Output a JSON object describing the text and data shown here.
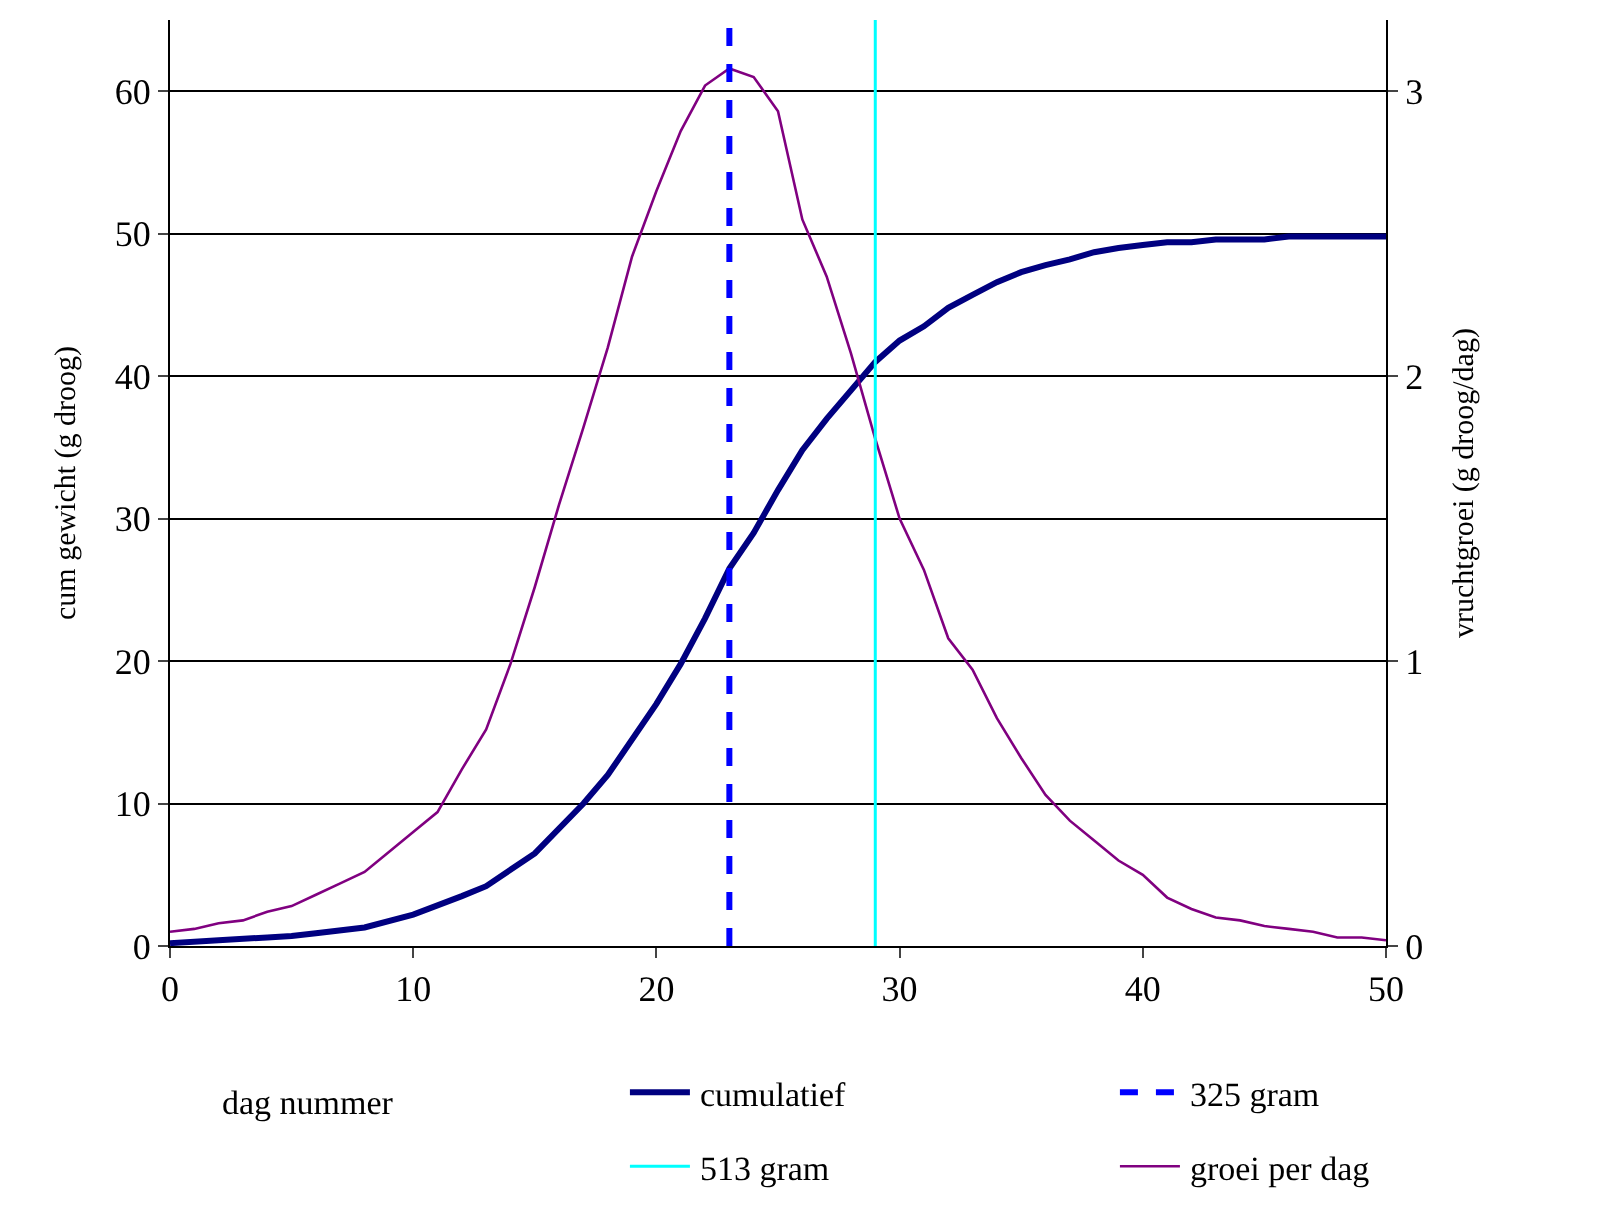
{
  "chart_data": {
    "type": "line",
    "xlabel": "dag nummer",
    "ylabel": "cum gewicht (g droog)",
    "y2label": "vruchtgroei (g droog/dag)",
    "xlim": [
      0,
      50
    ],
    "xticks": [
      0,
      10,
      20,
      30,
      40,
      50
    ],
    "ylim": [
      0,
      65
    ],
    "yticks": [
      0,
      10,
      20,
      30,
      40,
      50,
      60
    ],
    "y2lim": [
      0,
      3.25
    ],
    "y2ticks": [
      0,
      1,
      2,
      3
    ],
    "grid": "y",
    "legend": "bottom",
    "marker": "none",
    "series": [
      {
        "name": "cumulatief",
        "color": "#000080",
        "x": [
          0,
          2,
          4,
          5,
          6,
          8,
          10,
          12,
          13,
          15,
          17,
          18,
          20,
          21,
          22,
          23,
          24,
          25,
          26,
          27,
          28,
          29,
          30,
          31,
          32,
          33,
          34,
          35,
          36,
          37,
          38,
          39,
          40,
          41,
          42,
          43,
          44,
          45,
          46,
          48,
          50
        ],
        "values": [
          0.2,
          0.4,
          0.6,
          0.7,
          0.9,
          1.3,
          2.2,
          3.5,
          4.2,
          6.5,
          10,
          12,
          17,
          19.8,
          23,
          26.5,
          29,
          32,
          34.8,
          37,
          39,
          41,
          42.5,
          43.5,
          44.8,
          45.7,
          46.6,
          47.3,
          47.8,
          48.2,
          48.7,
          49,
          49.2,
          49.4,
          49.4,
          49.6,
          49.6,
          49.6,
          49.8,
          49.8,
          49.8
        ]
      },
      {
        "name": "groei per dag",
        "color": "#800080",
        "axis": "y2",
        "x": [
          0,
          1,
          2,
          3,
          4,
          5,
          6,
          7,
          8,
          9,
          10,
          11,
          12,
          13,
          14,
          15,
          16,
          17,
          18,
          19,
          20,
          21,
          22,
          23,
          24,
          25,
          26,
          27,
          28,
          29,
          30,
          31,
          32,
          33,
          34,
          35,
          36,
          37,
          38,
          39,
          40,
          41,
          42,
          43,
          44,
          45,
          46,
          47,
          48,
          49,
          50
        ],
        "values": [
          0.05,
          0.06,
          0.08,
          0.09,
          0.12,
          0.14,
          0.18,
          0.22,
          0.26,
          0.33,
          0.4,
          0.47,
          0.62,
          0.76,
          0.99,
          1.26,
          1.55,
          1.82,
          2.1,
          2.42,
          2.65,
          2.86,
          3.02,
          3.08,
          3.05,
          2.93,
          2.55,
          2.35,
          2.08,
          1.78,
          1.5,
          1.32,
          1.08,
          0.97,
          0.8,
          0.66,
          0.53,
          0.44,
          0.37,
          0.3,
          0.25,
          0.17,
          0.13,
          0.1,
          0.09,
          0.07,
          0.06,
          0.05,
          0.03,
          0.03,
          0.02
        ]
      }
    ],
    "ref_lines": [
      {
        "axis": "x",
        "value": 23,
        "label": "325 gram",
        "color": "#0000ff",
        "line_style": "dashed"
      },
      {
        "axis": "x",
        "value": 29,
        "label": "513 gram",
        "color": "#00ffff",
        "line_style": "solid"
      }
    ]
  }
}
